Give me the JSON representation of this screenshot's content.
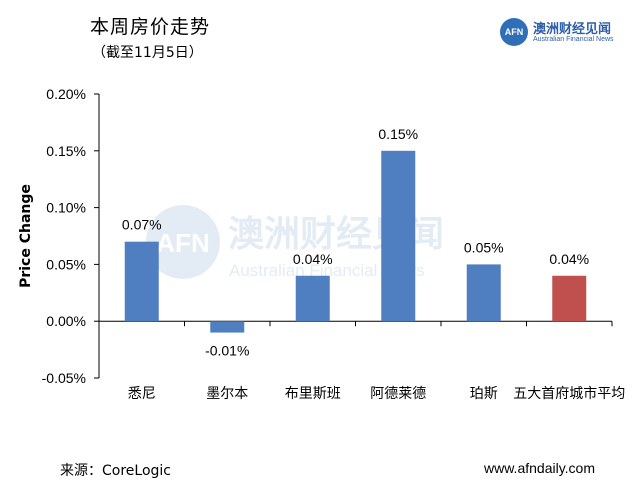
{
  "header": {
    "title": "本周房价走势",
    "subtitle": "（截至11月5日）"
  },
  "brand": {
    "logo_text": "AFN",
    "name_cn": "澳洲财经见闻",
    "name_en": "Australian Financial News"
  },
  "watermark": {
    "logo_text": "AFN",
    "name_cn": "澳洲财经见闻",
    "name_en": "Australian Financial News"
  },
  "footer": {
    "source": "来源：CoreLogic",
    "website": "www.afndaily.com"
  },
  "colors": {
    "bar_default": "#4f7fc1",
    "bar_highlight": "#c0504d",
    "axis": "#000000",
    "brand": "#2f6fb7"
  },
  "chart_data": {
    "type": "bar",
    "title": "本周房价走势",
    "subtitle": "（截至11月5日）",
    "xlabel": "",
    "ylabel": "Price Change",
    "categories": [
      "悉尼",
      "墨尔本",
      "布里斯班",
      "阿德莱德",
      "珀斯",
      "五大首府城市平均"
    ],
    "values": [
      0.0007,
      -0.0001,
      0.0004,
      0.0015,
      0.0005,
      0.0004
    ],
    "data_labels": [
      "0.07%",
      "-0.01%",
      "0.04%",
      "0.15%",
      "0.05%",
      "0.04%"
    ],
    "highlight_index": 5,
    "ylim": [
      -0.0005,
      0.002
    ],
    "yticks": [
      -0.0005,
      0,
      0.0005,
      0.001,
      0.0015,
      0.002
    ],
    "ytick_labels": [
      "-0.05%",
      "0.00%",
      "0.05%",
      "0.10%",
      "0.15%",
      "0.20%"
    ],
    "grid": false,
    "legend": "none"
  }
}
